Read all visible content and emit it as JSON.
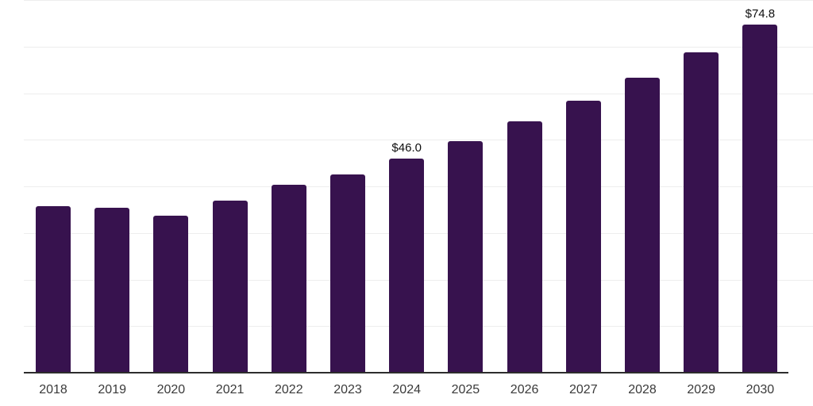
{
  "chart_data": {
    "type": "bar",
    "title": "",
    "xlabel": "",
    "ylabel": "",
    "categories": [
      "2018",
      "2019",
      "2020",
      "2021",
      "2022",
      "2023",
      "2024",
      "2025",
      "2026",
      "2027",
      "2028",
      "2029",
      "2030"
    ],
    "values": [
      35.7,
      35.4,
      33.7,
      36.9,
      40.3,
      42.6,
      46.0,
      49.7,
      53.9,
      58.4,
      63.3,
      68.8,
      74.8
    ],
    "data_labels": {
      "2024": "$46.0",
      "2030": "$74.8"
    },
    "ylim": [
      0,
      80
    ],
    "gridline_step": 10,
    "grid": true,
    "legend": false,
    "colors": {
      "bar_fill": "#37124E",
      "gridline": "#ededed",
      "axis_line": "#2d2d2d",
      "tick_label": "#3a3a3a",
      "value_label": "#0f0f0f",
      "background": "#ffffff"
    }
  }
}
